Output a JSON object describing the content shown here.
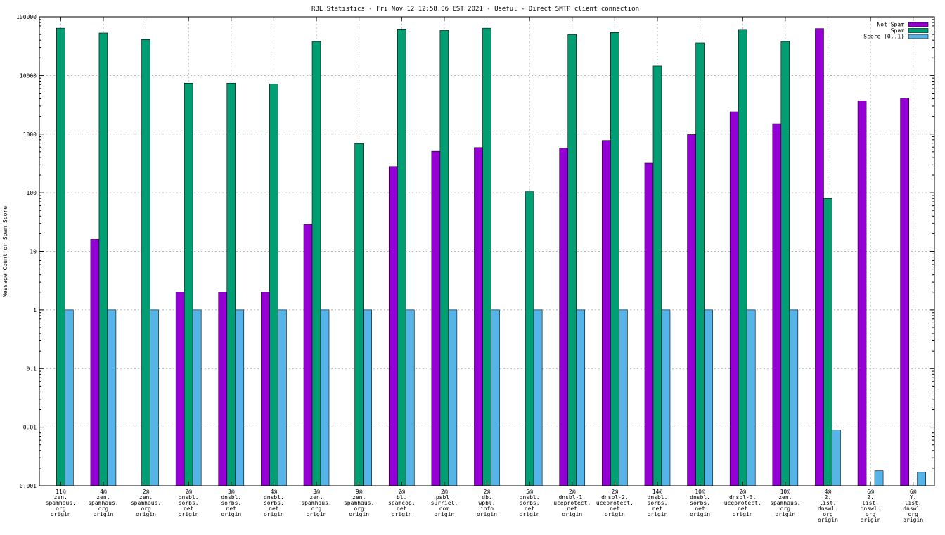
{
  "chart_data": {
    "type": "bar",
    "title": "RBL Statistics - Fri Nov 12 12:58:06 EST 2021 - Useful - Direct SMTP client connection",
    "xlabel": "",
    "ylabel": "Message Count or Spam Score",
    "yscale": "log",
    "ylim": [
      0.001,
      100000
    ],
    "yticks": [
      "0.001",
      "0.01",
      "0.1",
      "1",
      "10",
      "100",
      "1000",
      "10000",
      "100000"
    ],
    "grid": true,
    "legend_position": "top-right",
    "categories": [
      [
        "11@",
        "zen.",
        "spamhaus.",
        "org",
        "origin"
      ],
      [
        "4@",
        "zen.",
        "spamhaus.",
        "org",
        "origin"
      ],
      [
        "2@",
        "zen.",
        "spamhaus.",
        "org",
        "origin"
      ],
      [
        "2@",
        "dnsbl.",
        "sorbs.",
        "net",
        "origin"
      ],
      [
        "3@",
        "dnsbl.",
        "sorbs.",
        "net",
        "origin"
      ],
      [
        "4@",
        "dnsbl.",
        "sorbs.",
        "net",
        "origin"
      ],
      [
        "3@",
        "zen.",
        "spamhaus.",
        "org",
        "origin"
      ],
      [
        "9@",
        "zen.",
        "spamhaus.",
        "org",
        "origin"
      ],
      [
        "2@",
        "bl.",
        "spamcop.",
        "net",
        "origin"
      ],
      [
        "2@",
        "psbl.",
        "surriel.",
        "com",
        "origin"
      ],
      [
        "2@",
        "db.",
        "wpbl.",
        "info",
        "origin"
      ],
      [
        "5@",
        "dnsbl.",
        "sorbs.",
        "net",
        "origin"
      ],
      [
        "2@",
        "dnsbl-1.",
        "uceprotect.",
        "net",
        "origin"
      ],
      [
        "2@",
        "dnsbl-2.",
        "uceprotect.",
        "net",
        "origin"
      ],
      [
        "14@",
        "dnsbl.",
        "sorbs.",
        "net",
        "origin"
      ],
      [
        "10@",
        "dnsbl.",
        "sorbs.",
        "net",
        "origin"
      ],
      [
        "2@",
        "dnsbl-3.",
        "uceprotect.",
        "net",
        "origin"
      ],
      [
        "10@",
        "zen.",
        "spamhaus.",
        "org",
        "origin"
      ],
      [
        "4@",
        "2.",
        "list.",
        "dnswl.",
        "org",
        "origin"
      ],
      [
        "6@",
        "2.",
        "list.",
        "dnswl.",
        "org",
        "origin"
      ],
      [
        "6@",
        "Y.",
        "list.",
        "dnswl.",
        "org",
        "origin"
      ]
    ],
    "series": [
      {
        "name": "Not Spam",
        "color": "#9400d3",
        "values": [
          null,
          16,
          null,
          2,
          2,
          2,
          29,
          null,
          280,
          510,
          590,
          null,
          580,
          780,
          320,
          980,
          2400,
          1500,
          63000,
          3700,
          4100
        ]
      },
      {
        "name": "Spam",
        "color": "#009e73",
        "values": [
          64000,
          53000,
          41000,
          7400,
          7400,
          7200,
          38000,
          690,
          62000,
          59000,
          64000,
          104,
          50000,
          54000,
          14500,
          36000,
          61000,
          38000,
          80,
          null,
          null
        ]
      },
      {
        "name": "Score (0..1)",
        "color": "#56b4e9",
        "values": [
          1,
          1,
          1,
          1,
          1,
          1,
          1,
          1,
          1,
          1,
          1,
          1,
          1,
          1,
          1,
          1,
          1,
          1,
          0.009,
          0.0018,
          0.0017
        ]
      }
    ]
  }
}
